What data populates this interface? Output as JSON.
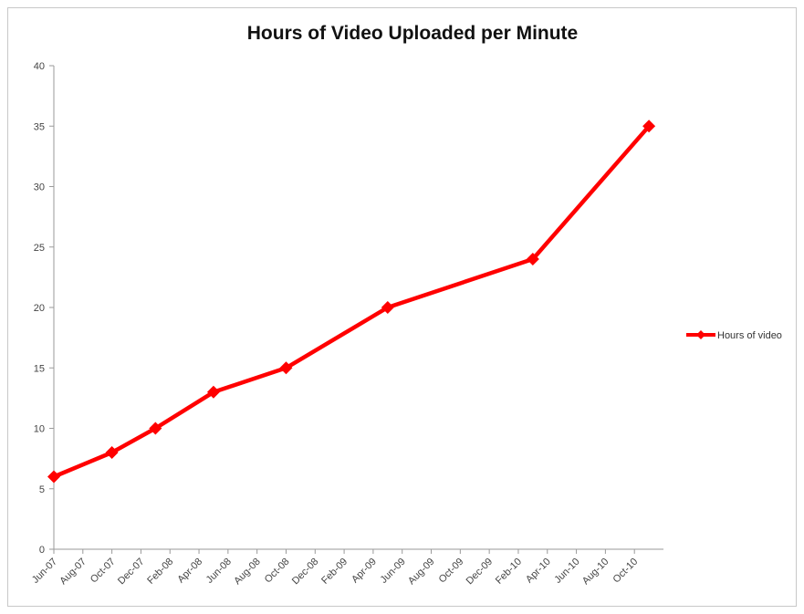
{
  "chart_data": {
    "type": "line",
    "title": "Hours of Video Uploaded per Minute",
    "xlabel": "",
    "ylabel": "",
    "categories": [
      "Jun-07",
      "Aug-07",
      "Oct-07",
      "Dec-07",
      "Feb-08",
      "Apr-08",
      "Jun-08",
      "Aug-08",
      "Oct-08",
      "Dec-08",
      "Feb-09",
      "Apr-09",
      "Jun-09",
      "Aug-09",
      "Oct-09",
      "Dec-09",
      "Feb-10",
      "Apr-10",
      "Jun-10",
      "Aug-10",
      "Oct-10"
    ],
    "series": [
      {
        "name": "Hours of video",
        "color": "#ff0000",
        "marker": "diamond",
        "points": [
          {
            "x": "Jun-07",
            "y": 6
          },
          {
            "x": "Oct-07",
            "y": 8
          },
          {
            "x": "Jan-08",
            "y": 10
          },
          {
            "x": "May-08",
            "y": 13
          },
          {
            "x": "Oct-08",
            "y": 15
          },
          {
            "x": "May-09",
            "y": 20
          },
          {
            "x": "Mar-10",
            "y": 24
          },
          {
            "x": "Nov-10",
            "y": 35
          }
        ]
      }
    ],
    "ylim": [
      0,
      40
    ],
    "yticks": [
      0,
      5,
      10,
      15,
      20,
      25,
      30,
      35,
      40
    ],
    "grid": false,
    "legend_position": "right"
  }
}
